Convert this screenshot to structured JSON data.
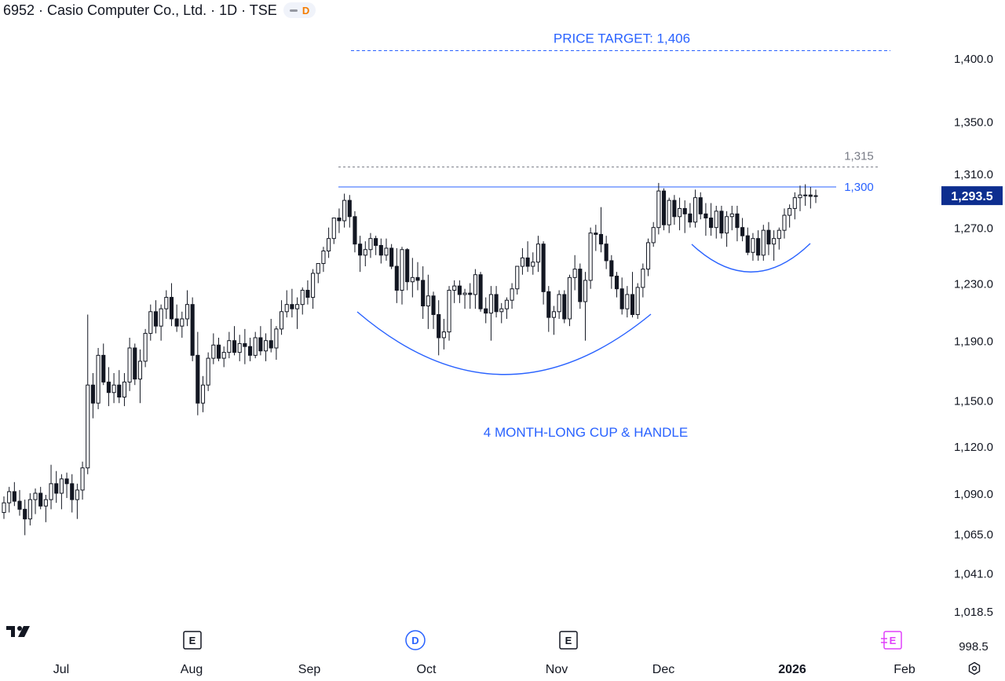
{
  "header": {
    "title": "6952 · Casio Computer Co., Ltd. · 1D · TSE",
    "toggle_letter": "D"
  },
  "chart_data": {
    "type": "candlestick",
    "title": "6952 · Casio Computer Co., Ltd. · 1D · TSE",
    "xlabel": "",
    "ylabel": "",
    "y_tick_labels": [
      "1,400.0",
      "1,350.0",
      "1,310.0",
      "1,270.0",
      "1,230.0",
      "1,190.0",
      "1,150.0",
      "1,120.0",
      "1,090.0",
      "1,065.0",
      "1,041.0",
      "1,018.5",
      "998.5"
    ],
    "y_tick_values": [
      1400,
      1350,
      1310,
      1270,
      1230,
      1190,
      1150,
      1120,
      1090,
      1065,
      1041,
      1018.5,
      998.5
    ],
    "x_tick_labels": [
      "Jul",
      "Aug",
      "Sep",
      "Oct",
      "Nov",
      "Dec",
      "2026",
      "Feb"
    ],
    "scale": "log",
    "last_price": 1293.5,
    "last_price_label": "1,293.5",
    "grid": false,
    "event_markers": [
      {
        "type": "earnings",
        "letter": "E",
        "near": "Aug",
        "color": "#131722"
      },
      {
        "type": "dividend",
        "letter": "D",
        "near": "Oct",
        "color": "#2962ff"
      },
      {
        "type": "earnings",
        "letter": "E",
        "near": "Nov",
        "color": "#131722"
      },
      {
        "type": "earnings",
        "letter": "E",
        "near": "Feb",
        "color": "#e040fb"
      }
    ],
    "levels": [
      {
        "value": 1406,
        "label": "PRICE TARGET: 1,406",
        "style": "dashed",
        "color": "#2962ff"
      },
      {
        "value": 1315,
        "label": "1,315",
        "style": "dashed",
        "color": "#787b86"
      },
      {
        "value": 1300,
        "label": "1,300",
        "style": "solid",
        "color": "#2962ff"
      }
    ],
    "annotations": [
      {
        "text": "4 MONTH-LONG CUP & HANDLE",
        "color": "#2962ff"
      }
    ],
    "candles": [
      [
        1078,
        1088,
        1074,
        1084
      ],
      [
        1084,
        1094,
        1078,
        1091
      ],
      [
        1091,
        1097,
        1082,
        1085
      ],
      [
        1085,
        1092,
        1076,
        1080
      ],
      [
        1080,
        1086,
        1064,
        1074
      ],
      [
        1074,
        1090,
        1070,
        1086
      ],
      [
        1086,
        1093,
        1077,
        1090
      ],
      [
        1090,
        1094,
        1080,
        1082
      ],
      [
        1082,
        1089,
        1072,
        1086
      ],
      [
        1086,
        1108,
        1080,
        1096
      ],
      [
        1096,
        1104,
        1084,
        1090
      ],
      [
        1090,
        1102,
        1080,
        1099
      ],
      [
        1099,
        1103,
        1087,
        1096
      ],
      [
        1096,
        1102,
        1078,
        1086
      ],
      [
        1086,
        1096,
        1074,
        1092
      ],
      [
        1092,
        1110,
        1086,
        1106
      ],
      [
        1106,
        1208,
        1102,
        1160
      ],
      [
        1160,
        1168,
        1138,
        1148
      ],
      [
        1148,
        1185,
        1144,
        1180
      ],
      [
        1180,
        1188,
        1160,
        1162
      ],
      [
        1162,
        1172,
        1146,
        1155
      ],
      [
        1155,
        1168,
        1148,
        1160
      ],
      [
        1160,
        1170,
        1148,
        1152
      ],
      [
        1152,
        1168,
        1146,
        1162
      ],
      [
        1162,
        1192,
        1156,
        1185
      ],
      [
        1185,
        1188,
        1160,
        1164
      ],
      [
        1164,
        1184,
        1148,
        1176
      ],
      [
        1176,
        1198,
        1172,
        1195
      ],
      [
        1195,
        1215,
        1190,
        1210
      ],
      [
        1210,
        1218,
        1195,
        1200
      ],
      [
        1200,
        1215,
        1190,
        1212
      ],
      [
        1212,
        1225,
        1205,
        1220
      ],
      [
        1220,
        1230,
        1200,
        1205
      ],
      [
        1205,
        1215,
        1196,
        1200
      ],
      [
        1200,
        1210,
        1192,
        1205
      ],
      [
        1205,
        1225,
        1200,
        1215
      ],
      [
        1215,
        1220,
        1176,
        1180
      ],
      [
        1180,
        1196,
        1140,
        1148
      ],
      [
        1148,
        1166,
        1142,
        1160
      ],
      [
        1160,
        1182,
        1156,
        1178
      ],
      [
        1178,
        1195,
        1174,
        1187
      ],
      [
        1187,
        1192,
        1176,
        1178
      ],
      [
        1178,
        1186,
        1172,
        1182
      ],
      [
        1182,
        1196,
        1178,
        1190
      ],
      [
        1190,
        1200,
        1180,
        1182
      ],
      [
        1182,
        1194,
        1176,
        1188
      ],
      [
        1188,
        1198,
        1174,
        1186
      ],
      [
        1186,
        1192,
        1176,
        1180
      ],
      [
        1180,
        1196,
        1178,
        1192
      ],
      [
        1192,
        1200,
        1180,
        1183
      ],
      [
        1183,
        1195,
        1176,
        1190
      ],
      [
        1190,
        1205,
        1182,
        1185
      ],
      [
        1185,
        1200,
        1177,
        1198
      ],
      [
        1198,
        1218,
        1194,
        1210
      ],
      [
        1210,
        1225,
        1206,
        1215
      ],
      [
        1215,
        1226,
        1206,
        1212
      ],
      [
        1212,
        1220,
        1198,
        1215
      ],
      [
        1215,
        1227,
        1208,
        1225
      ],
      [
        1225,
        1232,
        1215,
        1220
      ],
      [
        1220,
        1240,
        1212,
        1237
      ],
      [
        1237,
        1244,
        1230,
        1244
      ],
      [
        1244,
        1256,
        1238,
        1253
      ],
      [
        1253,
        1270,
        1248,
        1262
      ],
      [
        1262,
        1277,
        1258,
        1277
      ],
      [
        1277,
        1284,
        1266,
        1275
      ],
      [
        1275,
        1295,
        1270,
        1290
      ],
      [
        1290,
        1294,
        1270,
        1278
      ],
      [
        1278,
        1282,
        1252,
        1258
      ],
      [
        1258,
        1264,
        1238,
        1250
      ],
      [
        1250,
        1260,
        1242,
        1254
      ],
      [
        1254,
        1266,
        1248,
        1262
      ],
      [
        1262,
        1264,
        1250,
        1257
      ],
      [
        1257,
        1262,
        1244,
        1250
      ],
      [
        1250,
        1262,
        1246,
        1255
      ],
      [
        1255,
        1258,
        1240,
        1242
      ],
      [
        1242,
        1255,
        1216,
        1225
      ],
      [
        1225,
        1256,
        1215,
        1254
      ],
      [
        1254,
        1255,
        1225,
        1231
      ],
      [
        1231,
        1248,
        1220,
        1234
      ],
      [
        1234,
        1245,
        1225,
        1232
      ],
      [
        1232,
        1242,
        1205,
        1214
      ],
      [
        1214,
        1236,
        1198,
        1221
      ],
      [
        1221,
        1224,
        1198,
        1208
      ],
      [
        1208,
        1218,
        1180,
        1192
      ],
      [
        1192,
        1205,
        1184,
        1196
      ],
      [
        1196,
        1228,
        1190,
        1225
      ],
      [
        1225,
        1232,
        1216,
        1228
      ],
      [
        1228,
        1232,
        1216,
        1222
      ],
      [
        1222,
        1226,
        1212,
        1223
      ],
      [
        1223,
        1230,
        1212,
        1222
      ],
      [
        1222,
        1240,
        1212,
        1236
      ],
      [
        1236,
        1238,
        1210,
        1212
      ],
      [
        1212,
        1220,
        1202,
        1209
      ],
      [
        1209,
        1228,
        1190,
        1222
      ],
      [
        1222,
        1228,
        1206,
        1210
      ],
      [
        1210,
        1216,
        1202,
        1212
      ],
      [
        1212,
        1220,
        1205,
        1218
      ],
      [
        1218,
        1230,
        1212,
        1226
      ],
      [
        1226,
        1242,
        1222,
        1242
      ],
      [
        1242,
        1255,
        1236,
        1248
      ],
      [
        1248,
        1260,
        1238,
        1242
      ],
      [
        1242,
        1252,
        1236,
        1245
      ],
      [
        1245,
        1264,
        1238,
        1258
      ],
      [
        1258,
        1260,
        1215,
        1224
      ],
      [
        1224,
        1228,
        1196,
        1206
      ],
      [
        1206,
        1214,
        1194,
        1210
      ],
      [
        1210,
        1225,
        1205,
        1222
      ],
      [
        1222,
        1225,
        1202,
        1205
      ],
      [
        1205,
        1236,
        1200,
        1234
      ],
      [
        1234,
        1250,
        1225,
        1240
      ],
      [
        1240,
        1244,
        1212,
        1217
      ],
      [
        1217,
        1238,
        1190,
        1232
      ],
      [
        1232,
        1270,
        1226,
        1266
      ],
      [
        1266,
        1272,
        1253,
        1265
      ],
      [
        1265,
        1285,
        1252,
        1258
      ],
      [
        1258,
        1264,
        1240,
        1246
      ],
      [
        1246,
        1250,
        1226,
        1235
      ],
      [
        1235,
        1238,
        1220,
        1226
      ],
      [
        1226,
        1234,
        1208,
        1212
      ],
      [
        1212,
        1228,
        1206,
        1222
      ],
      [
        1222,
        1238,
        1206,
        1208
      ],
      [
        1208,
        1230,
        1205,
        1227
      ],
      [
        1227,
        1244,
        1220,
        1240
      ],
      [
        1240,
        1262,
        1235,
        1259
      ],
      [
        1259,
        1274,
        1256,
        1270
      ],
      [
        1270,
        1303,
        1265,
        1297
      ],
      [
        1297,
        1299,
        1268,
        1272
      ],
      [
        1272,
        1292,
        1266,
        1290
      ],
      [
        1290,
        1294,
        1272,
        1278
      ],
      [
        1278,
        1292,
        1268,
        1284
      ],
      [
        1284,
        1290,
        1266,
        1280
      ],
      [
        1280,
        1288,
        1270,
        1274
      ],
      [
        1274,
        1298,
        1270,
        1292
      ],
      [
        1292,
        1296,
        1276,
        1280
      ],
      [
        1280,
        1288,
        1264,
        1277
      ],
      [
        1277,
        1288,
        1264,
        1270
      ],
      [
        1270,
        1286,
        1262,
        1282
      ],
      [
        1282,
        1286,
        1262,
        1266
      ],
      [
        1266,
        1282,
        1256,
        1278
      ],
      [
        1278,
        1286,
        1268,
        1280
      ],
      [
        1280,
        1286,
        1260,
        1270
      ],
      [
        1270,
        1277,
        1260,
        1264
      ],
      [
        1264,
        1270,
        1250,
        1252
      ],
      [
        1252,
        1266,
        1246,
        1262
      ],
      [
        1262,
        1268,
        1246,
        1250
      ],
      [
        1250,
        1272,
        1246,
        1268
      ],
      [
        1268,
        1274,
        1250,
        1258
      ],
      [
        1258,
        1268,
        1246,
        1262
      ],
      [
        1262,
        1270,
        1254,
        1268
      ],
      [
        1268,
        1284,
        1262,
        1279
      ],
      [
        1279,
        1287,
        1270,
        1284
      ],
      [
        1284,
        1296,
        1276,
        1292
      ],
      [
        1292,
        1301,
        1282,
        1294
      ],
      [
        1294,
        1302,
        1286,
        1294
      ],
      [
        1294,
        1300,
        1284,
        1293
      ],
      [
        1293,
        1298,
        1288,
        1293.5
      ]
    ]
  }
}
